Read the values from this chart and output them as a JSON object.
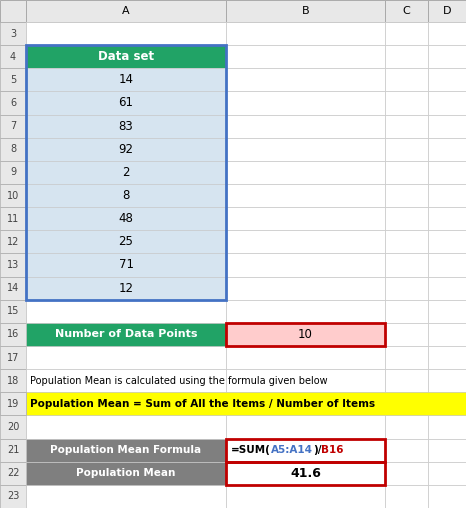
{
  "col_labels": [
    "A",
    "B",
    "C",
    "D"
  ],
  "dataset_header": "Data set",
  "dataset_values": [
    14,
    61,
    83,
    92,
    2,
    8,
    48,
    25,
    71,
    12
  ],
  "num_data_points_label": "Number of Data Points",
  "num_data_points_value": "10",
  "row18_text": "Population Mean is calculated using the formula given below",
  "row19_text": "Population Mean = Sum of All the Items / Number of Items",
  "row21_label": "Population Mean Formula",
  "row21_f1": "=SUM(",
  "row21_f2": "A5:A14",
  "row21_f3": ")/",
  "row21_f4": "B16",
  "row22_label": "Population Mean",
  "row22_value": "41.6",
  "bg_color": "#FFFFFF",
  "header_color": "#E8E8E8",
  "green_fill": "#21A366",
  "green_text": "#FFFFFF",
  "light_blue_fill": "#D6E4F0",
  "pink_fill": "#FFCCCC",
  "red_border": "#C00000",
  "blue_border": "#4472C4",
  "yellow_fill": "#FFFF00",
  "gray_fill": "#7F7F7F",
  "gray_text": "#FFFFFF",
  "grid_color": "#C8C8C8",
  "text_black": "#000000",
  "text_blue": "#4472C4",
  "text_red": "#C00000"
}
